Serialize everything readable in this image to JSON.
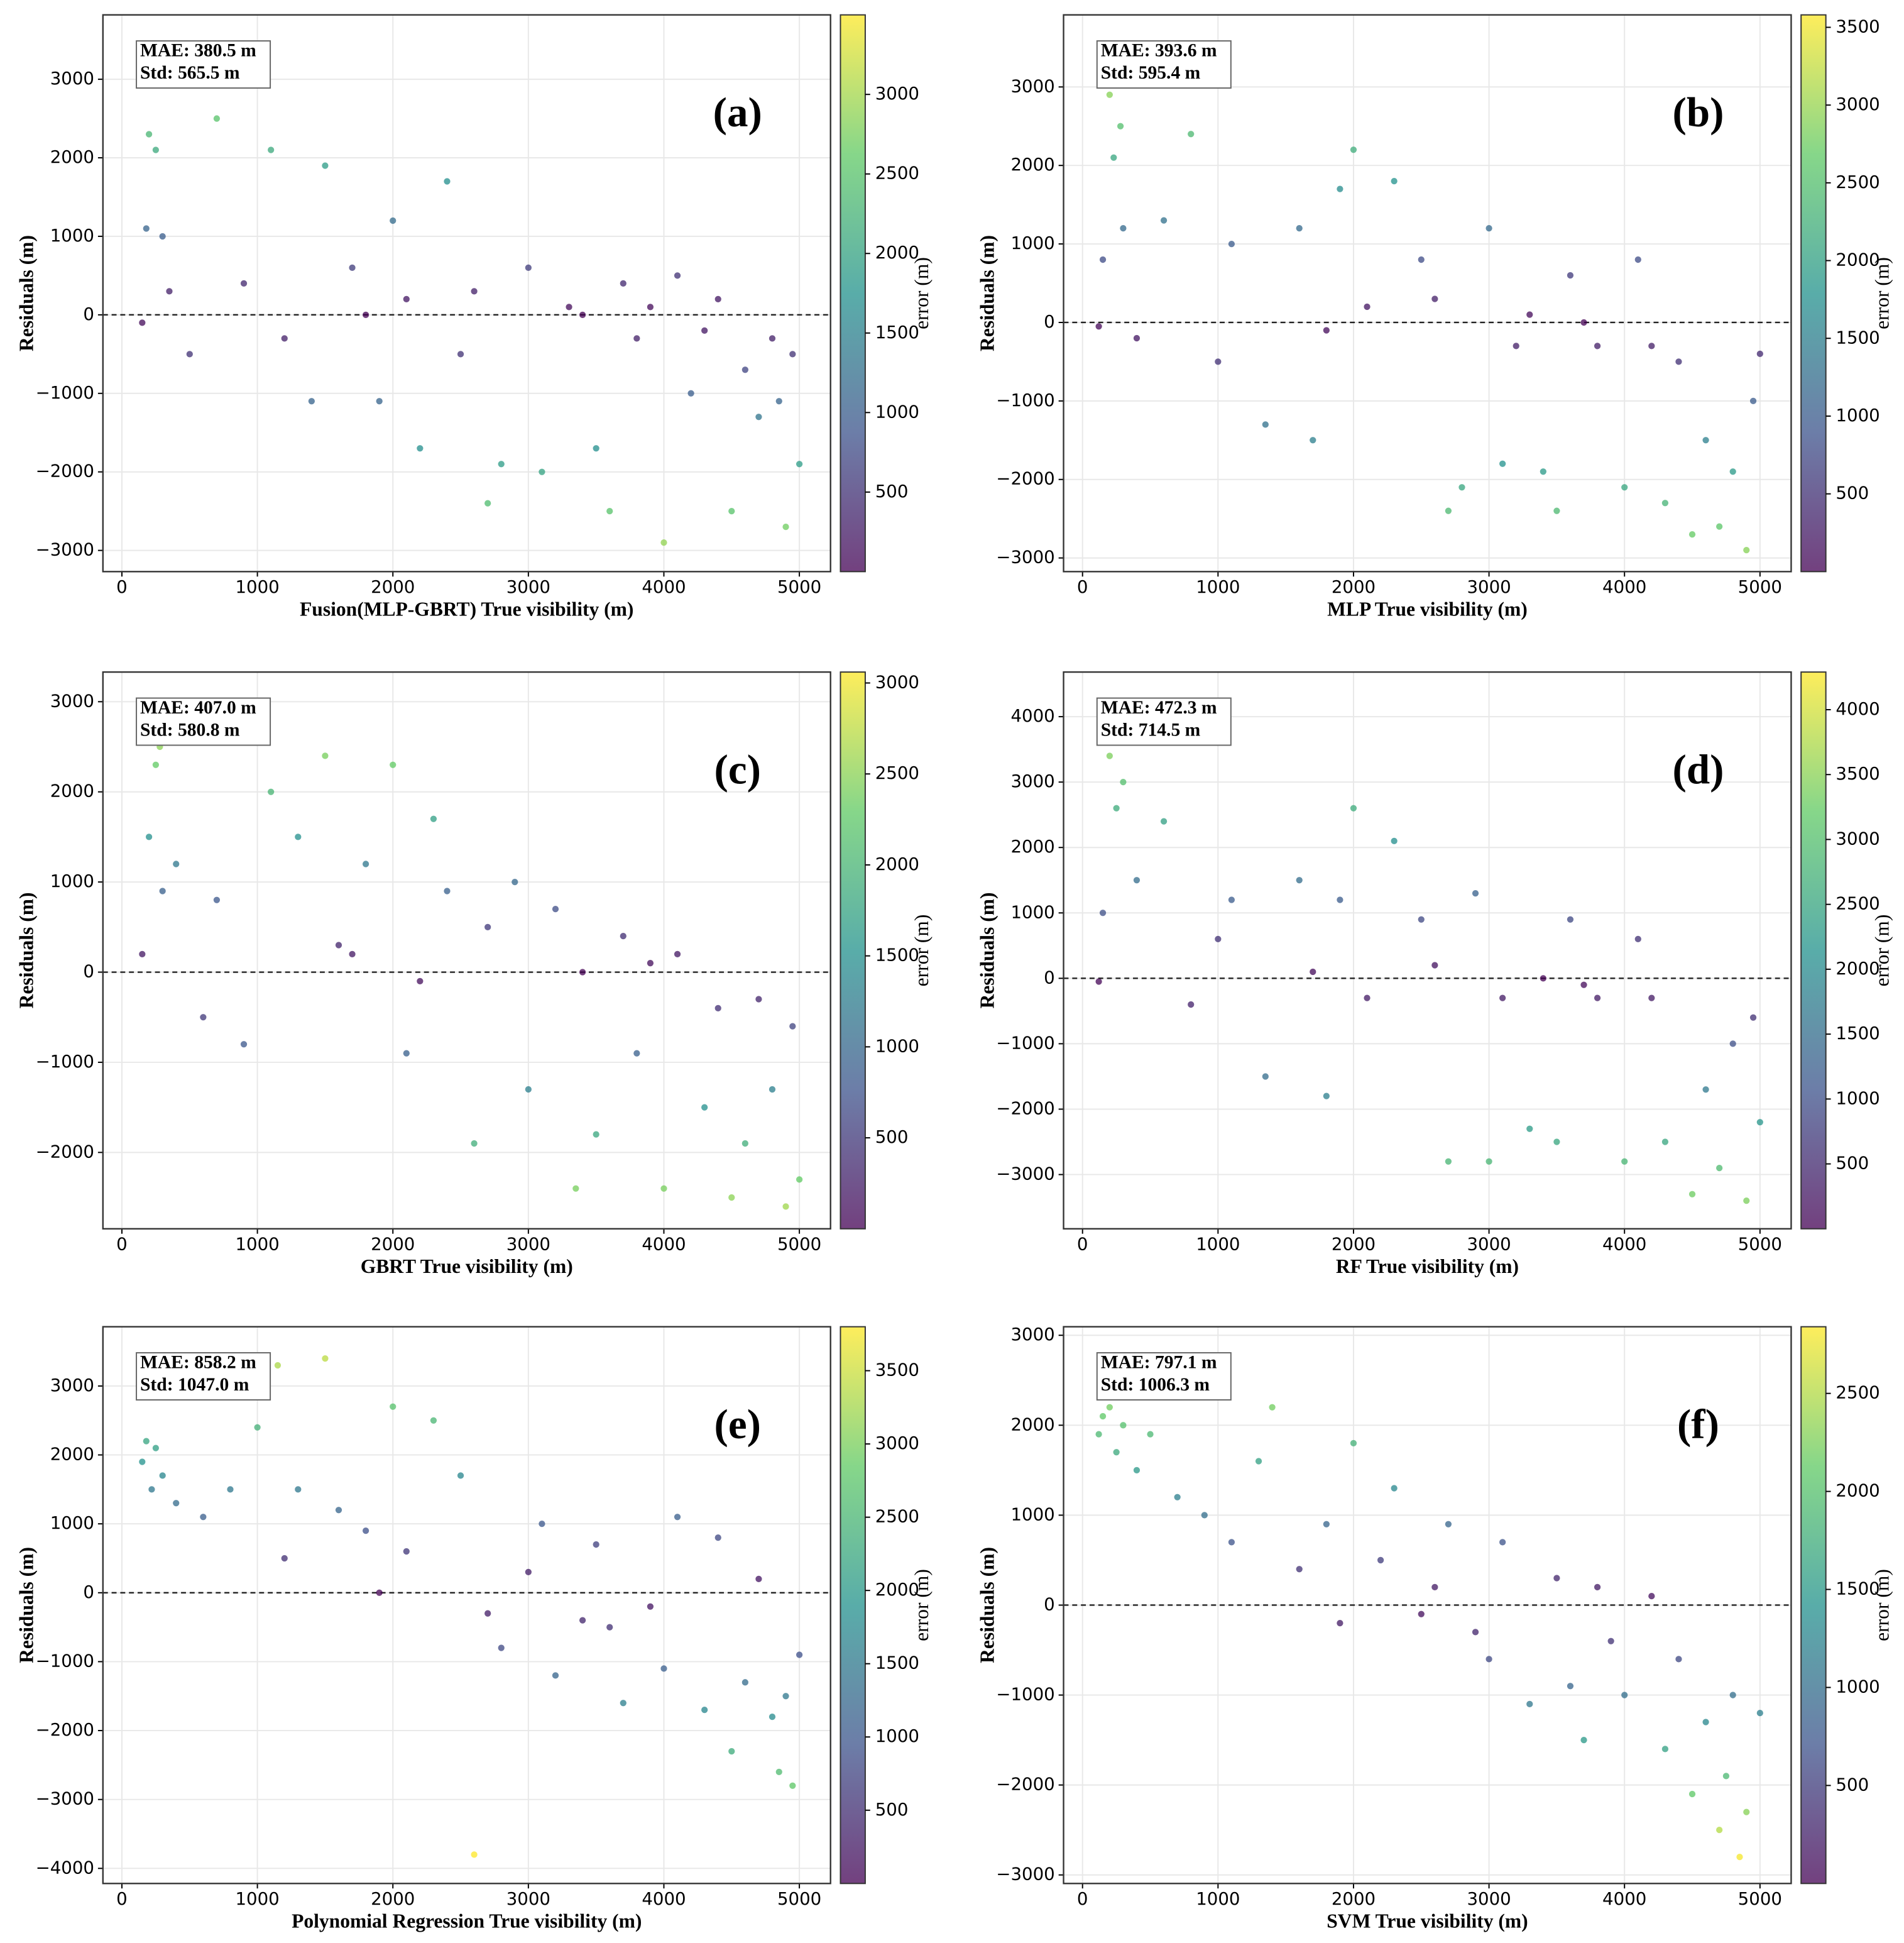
{
  "chart_data": [
    {
      "type": "scatter",
      "panel_label": "(a)",
      "annotations": [
        "MAE: 380.5 m",
        "Std: 565.5 m"
      ],
      "xlabel": "Fusion(MLP-GBRT) True visibility (m)",
      "ylabel": "Residuals (m)",
      "colorbar_label": "error (m)",
      "colormap": "viridis",
      "grid": true,
      "reference_line": 0,
      "x": [
        150,
        180,
        200,
        250,
        300,
        350,
        500,
        700,
        900,
        1100,
        1200,
        1400,
        1500,
        1700,
        1900,
        2000,
        2100,
        2200,
        2400,
        2500,
        2700,
        2800,
        3000,
        3100,
        3300,
        3500,
        3600,
        3700,
        3800,
        4000,
        4100,
        4200,
        4400,
        4500,
        4600,
        4700,
        4800,
        4850,
        4900,
        4950,
        5000,
        3400,
        3900,
        4300,
        2600,
        1800
      ],
      "values": [
        -100,
        1100,
        2300,
        2100,
        1000,
        300,
        -500,
        2500,
        400,
        2100,
        -300,
        -1100,
        1900,
        600,
        -1100,
        1200,
        200,
        -1700,
        1700,
        -500,
        -2400,
        -1900,
        600,
        -2000,
        100,
        -1700,
        -2500,
        400,
        -300,
        -2900,
        500,
        -1000,
        200,
        -2500,
        -700,
        -1300,
        -300,
        -1100,
        -2700,
        -500,
        -1900,
        0,
        100,
        -200,
        300,
        0
      ],
      "xlim": [
        -140,
        5230
      ],
      "ylim": [
        -3270,
        3820
      ],
      "xticks": [
        0,
        1000,
        2000,
        3000,
        4000,
        5000
      ],
      "yticks": [
        {
          "value": -3000,
          "label": "−3000"
        },
        {
          "value": -2000,
          "label": "−2000"
        },
        {
          "value": -1000,
          "label": "−1000"
        },
        0,
        1000,
        2000,
        3000
      ],
      "clim": [
        0,
        3500
      ],
      "cticks": [
        500,
        1000,
        1500,
        2000,
        2500,
        3000
      ]
    },
    {
      "type": "scatter",
      "panel_label": "(b)",
      "annotations": [
        "MAE: 393.6 m",
        "Std: 595.4 m"
      ],
      "xlabel": "MLP True visibility (m)",
      "ylabel": "Residuals (m)",
      "colorbar_label": "error (m)",
      "colormap": "viridis",
      "grid": true,
      "reference_line": 0,
      "x": [
        120,
        150,
        200,
        230,
        280,
        300,
        400,
        600,
        800,
        1000,
        1100,
        1350,
        1600,
        1700,
        1900,
        2000,
        2100,
        2300,
        2500,
        2700,
        2800,
        3000,
        3100,
        3200,
        3400,
        3500,
        3600,
        3800,
        4000,
        4100,
        4300,
        4400,
        4500,
        4600,
        4700,
        4800,
        4900,
        4950,
        5000,
        3300,
        3700,
        4200,
        2600,
        1800
      ],
      "values": [
        -50,
        800,
        2900,
        2100,
        2500,
        1200,
        -200,
        1300,
        2400,
        -500,
        1000,
        -1300,
        1200,
        -1500,
        1700,
        2200,
        200,
        1800,
        800,
        -2400,
        -2100,
        1200,
        -1800,
        -300,
        -1900,
        -2400,
        600,
        -300,
        -2100,
        800,
        -2300,
        -500,
        -2700,
        -1500,
        -2600,
        -1900,
        -2900,
        -1000,
        -400,
        100,
        0,
        -300,
        300,
        -100
      ],
      "xlim": [
        -140,
        5230
      ],
      "ylim": [
        -3174,
        3918
      ],
      "xticks": [
        0,
        1000,
        2000,
        3000,
        4000,
        5000
      ],
      "yticks": [
        {
          "value": -3000,
          "label": "−3000"
        },
        {
          "value": -2000,
          "label": "−2000"
        },
        {
          "value": -1000,
          "label": "−1000"
        },
        0,
        1000,
        2000,
        3000
      ],
      "clim": [
        0,
        3580
      ],
      "cticks": [
        500,
        1000,
        1500,
        2000,
        2500,
        3000,
        3500
      ]
    },
    {
      "type": "scatter",
      "panel_label": "(c)",
      "annotations": [
        "MAE: 407.0 m",
        "Std: 580.8 m"
      ],
      "xlabel": "GBRT True visibility (m)",
      "ylabel": "Residuals (m)",
      "colorbar_label": "error (m)",
      "colormap": "viridis",
      "grid": true,
      "reference_line": 0,
      "x": [
        150,
        200,
        250,
        280,
        300,
        400,
        600,
        700,
        900,
        1100,
        1300,
        1500,
        1600,
        1800,
        2000,
        2100,
        2300,
        2400,
        2600,
        2700,
        2900,
        3000,
        3200,
        3350,
        3500,
        3700,
        3800,
        4000,
        4100,
        4300,
        4500,
        4600,
        4700,
        4800,
        4900,
        4950,
        5000,
        3400,
        3900,
        4400,
        2200,
        1700
      ],
      "values": [
        200,
        1500,
        2300,
        2500,
        900,
        1200,
        -500,
        800,
        -800,
        2000,
        1500,
        2400,
        300,
        1200,
        2300,
        -900,
        1700,
        900,
        -1900,
        500,
        1000,
        -1300,
        700,
        -2400,
        -1800,
        400,
        -900,
        -2400,
        200,
        -1500,
        -2500,
        -1900,
        -300,
        -1300,
        -2600,
        -600,
        -2300,
        0,
        100,
        -400,
        -100,
        200
      ],
      "xlim": [
        -140,
        5230
      ],
      "ylim": [
        -2847,
        3329
      ],
      "xticks": [
        0,
        1000,
        2000,
        3000,
        4000,
        5000
      ],
      "yticks": [
        {
          "value": -2000,
          "label": "−2000"
        },
        {
          "value": -1000,
          "label": "−1000"
        },
        0,
        1000,
        2000,
        3000
      ],
      "clim": [
        0,
        3060
      ],
      "cticks": [
        500,
        1000,
        1500,
        2000,
        2500,
        3000
      ]
    },
    {
      "type": "scatter",
      "panel_label": "(d)",
      "annotations": [
        "MAE: 472.3 m",
        "Std: 714.5 m"
      ],
      "xlabel": "RF True visibility (m)",
      "ylabel": "Residuals (m)",
      "colorbar_label": "error (m)",
      "colormap": "viridis",
      "grid": true,
      "reference_line": 0,
      "x": [
        120,
        150,
        200,
        250,
        300,
        400,
        600,
        800,
        1000,
        1100,
        1350,
        1600,
        1800,
        1900,
        2000,
        2100,
        2300,
        2500,
        2700,
        2900,
        3000,
        3100,
        3300,
        3500,
        3600,
        3800,
        4000,
        4100,
        4300,
        4500,
        4600,
        4700,
        4800,
        4900,
        4950,
        5000,
        3400,
        3700,
        4200,
        2600,
        1700
      ],
      "values": [
        -50,
        1000,
        3400,
        2600,
        3000,
        1500,
        2400,
        -400,
        600,
        1200,
        -1500,
        1500,
        -1800,
        1200,
        2600,
        -300,
        2100,
        900,
        -2800,
        1300,
        -2800,
        -300,
        -2300,
        -2500,
        900,
        -300,
        -2800,
        600,
        -2500,
        -3300,
        -1700,
        -2900,
        -1000,
        -3400,
        -600,
        -2200,
        0,
        -100,
        -300,
        200,
        100
      ],
      "xlim": [
        -140,
        5230
      ],
      "ylim": [
        -3829,
        4682
      ],
      "xticks": [
        0,
        1000,
        2000,
        3000,
        4000,
        5000
      ],
      "yticks": [
        {
          "value": -3000,
          "label": "−3000"
        },
        {
          "value": -2000,
          "label": "−2000"
        },
        {
          "value": -1000,
          "label": "−1000"
        },
        0,
        1000,
        2000,
        3000,
        4000
      ],
      "clim": [
        0,
        4290
      ],
      "cticks": [
        500,
        1000,
        1500,
        2000,
        2500,
        3000,
        3500,
        4000
      ]
    },
    {
      "type": "scatter",
      "panel_label": "(e)",
      "annotations": [
        "MAE: 858.2 m",
        "Std: 1047.0 m"
      ],
      "xlabel": "Polynomial Regression True visibility (m)",
      "ylabel": "Residuals (m)",
      "colorbar_label": "error (m)",
      "colormap": "viridis",
      "grid": true,
      "reference_line": 0,
      "x": [
        150,
        180,
        220,
        250,
        300,
        400,
        600,
        800,
        1000,
        1150,
        1200,
        1500,
        1600,
        1800,
        1900,
        2000,
        2100,
        2300,
        2500,
        2600,
        2800,
        3000,
        3100,
        3200,
        3400,
        3500,
        3700,
        3900,
        4000,
        4100,
        4300,
        4400,
        4500,
        4600,
        4700,
        4800,
        4850,
        4900,
        4950,
        5000,
        2700,
        3600,
        1300
      ],
      "values": [
        1900,
        2200,
        1500,
        2100,
        1700,
        1300,
        1100,
        1500,
        2400,
        3300,
        500,
        3400,
        1200,
        900,
        0,
        2700,
        600,
        2500,
        1700,
        -3800,
        -800,
        300,
        1000,
        -1200,
        -400,
        700,
        -1600,
        -200,
        -1100,
        1100,
        -1700,
        800,
        -2300,
        -1300,
        200,
        -1800,
        -2600,
        -1500,
        -2800,
        -900,
        -300,
        -500,
        1500
      ],
      "xlim": [
        -140,
        5230
      ],
      "ylim": [
        -4219,
        3860
      ],
      "xticks": [
        0,
        1000,
        2000,
        3000,
        4000,
        5000
      ],
      "yticks": [
        {
          "value": -4000,
          "label": "−4000"
        },
        {
          "value": -3000,
          "label": "−3000"
        },
        {
          "value": -2000,
          "label": "−2000"
        },
        {
          "value": -1000,
          "label": "−1000"
        },
        0,
        1000,
        2000,
        3000
      ],
      "clim": [
        0,
        3800
      ],
      "cticks": [
        500,
        1000,
        1500,
        2000,
        2500,
        3000,
        3500
      ]
    },
    {
      "type": "scatter",
      "panel_label": "(f)",
      "annotations": [
        "MAE: 797.1 m",
        "Std: 1006.3 m"
      ],
      "xlabel": "SVM True visibility (m)",
      "ylabel": "Residuals (m)",
      "colorbar_label": "error (m)",
      "colormap": "viridis",
      "grid": true,
      "reference_line": 0,
      "x": [
        120,
        150,
        200,
        250,
        300,
        400,
        500,
        700,
        900,
        1100,
        1300,
        1400,
        1600,
        1800,
        1900,
        2000,
        2200,
        2300,
        2500,
        2700,
        2900,
        3000,
        3100,
        3300,
        3500,
        3600,
        3700,
        3900,
        4000,
        4200,
        4300,
        4400,
        4500,
        4600,
        4700,
        4750,
        4800,
        4850,
        4900,
        5000,
        2600,
        3800
      ],
      "values": [
        1900,
        2100,
        2200,
        1700,
        2000,
        1500,
        1900,
        1200,
        1000,
        700,
        1600,
        2200,
        400,
        900,
        -200,
        1800,
        500,
        1300,
        -100,
        900,
        -300,
        -600,
        700,
        -1100,
        300,
        -900,
        -1500,
        -400,
        -1000,
        100,
        -1600,
        -600,
        -2100,
        -1300,
        -2500,
        -1900,
        -1000,
        -2800,
        -2300,
        -1200,
        200,
        200
      ],
      "xlim": [
        -140,
        5230
      ],
      "ylim": [
        -3095,
        3095
      ],
      "xticks": [
        0,
        1000,
        2000,
        3000,
        4000,
        5000
      ],
      "yticks": [
        {
          "value": -3000,
          "label": "−3000"
        },
        {
          "value": -2000,
          "label": "−2000"
        },
        {
          "value": -1000,
          "label": "−1000"
        },
        0,
        1000,
        2000,
        3000
      ],
      "clim": [
        0,
        2840
      ],
      "cticks": [
        500,
        1000,
        1500,
        2000,
        2500
      ]
    }
  ]
}
